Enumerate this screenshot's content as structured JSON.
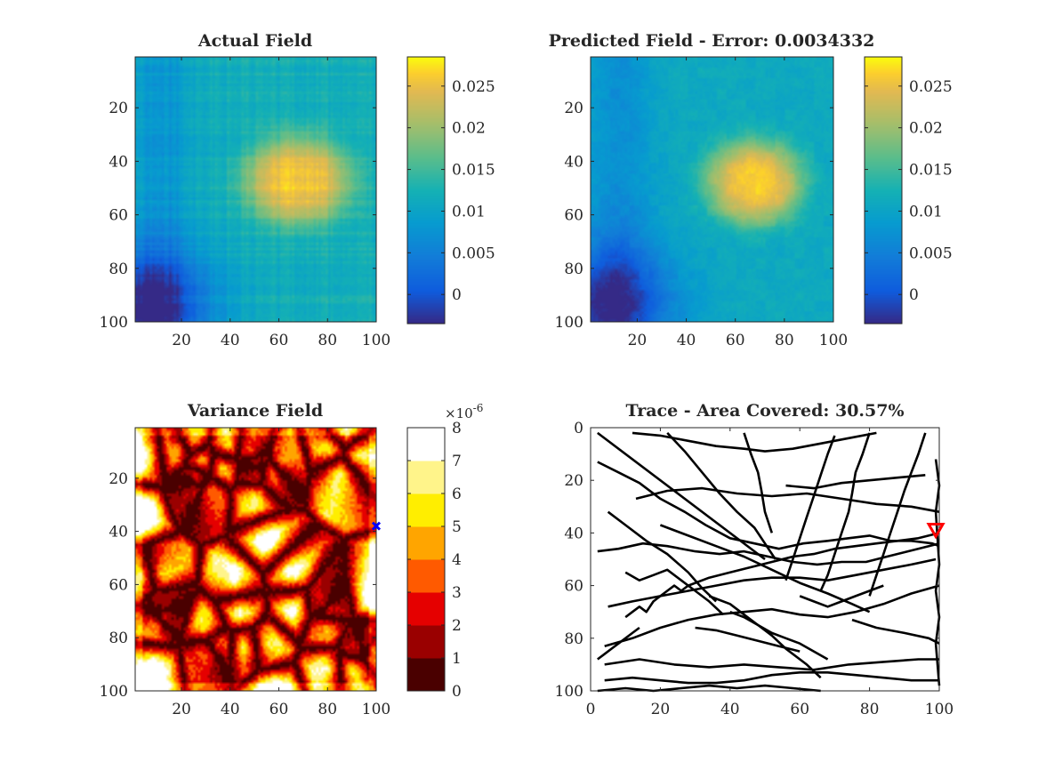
{
  "figure": {
    "panels": [
      {
        "title": "Actual Field"
      },
      {
        "title": "Predicted Field - Error: 0.0034332"
      },
      {
        "title": "Variance Field"
      },
      {
        "title": "Trace - Area Covered: 30.57%"
      }
    ]
  },
  "chart_data": [
    {
      "type": "heatmap",
      "title": "Actual Field",
      "xlabel": "",
      "ylabel": "",
      "xlim": [
        1,
        100
      ],
      "ylim": [
        1,
        100
      ],
      "y_reversed": true,
      "x_ticks": [
        "20",
        "40",
        "60",
        "80",
        "100"
      ],
      "y_ticks": [
        "20",
        "40",
        "60",
        "80",
        "100"
      ],
      "colormap": "parula",
      "colorbar": {
        "range": [
          -0.0035,
          0.0285
        ],
        "ticks": [
          "0",
          "0.005",
          "0.01",
          "0.015",
          "0.02",
          "0.025"
        ],
        "tick_values": [
          0,
          0.005,
          0.01,
          0.015,
          0.02,
          0.025
        ]
      },
      "field_model": {
        "hot_center": [
          68,
          47
        ],
        "hot_peak": 0.026,
        "hot_spread": [
          22,
          17
        ],
        "cold_corner": [
          5,
          95
        ],
        "cold_value": -0.002,
        "background": 0.012,
        "grid_texture": true
      }
    },
    {
      "type": "heatmap",
      "title": "Predicted Field - Error: 0.0034332",
      "xlabel": "",
      "ylabel": "",
      "xlim": [
        1,
        100
      ],
      "ylim": [
        1,
        100
      ],
      "y_reversed": true,
      "x_ticks": [
        "20",
        "40",
        "60",
        "80",
        "100"
      ],
      "y_ticks": [
        "20",
        "40",
        "60",
        "80",
        "100"
      ],
      "colormap": "parula",
      "colorbar": {
        "range": [
          -0.0035,
          0.0285
        ],
        "ticks": [
          "0",
          "0.005",
          "0.01",
          "0.015",
          "0.02",
          "0.025"
        ],
        "tick_values": [
          0,
          0.005,
          0.01,
          0.015,
          0.02,
          0.025
        ]
      },
      "field_model": {
        "hot_center": [
          68,
          48
        ],
        "hot_peak": 0.0265,
        "hot_spread": [
          20,
          16
        ],
        "cold_corner": [
          8,
          93
        ],
        "cold_value": -0.001,
        "background": 0.011,
        "grid_texture": false
      }
    },
    {
      "type": "heatmap",
      "title": "Variance Field",
      "xlabel": "",
      "ylabel": "",
      "xlim": [
        1,
        100
      ],
      "ylim": [
        1,
        100
      ],
      "y_reversed": true,
      "x_ticks": [
        "20",
        "40",
        "60",
        "80",
        "100"
      ],
      "y_ticks": [
        "20",
        "40",
        "60",
        "80",
        "100"
      ],
      "colormap": "hot (discrete, 8 levels)",
      "colorbar": {
        "range": [
          0,
          8
        ],
        "ticks": [
          "0",
          "1",
          "2",
          "3",
          "4",
          "5",
          "6",
          "7",
          "8"
        ],
        "multiplier": "×10",
        "multiplier_exponent": "-6",
        "level_colors": [
          "#4a0000",
          "#9a0000",
          "#e50000",
          "#ff5a00",
          "#ffa500",
          "#ffee00",
          "#fff48a",
          "#ffffff"
        ]
      },
      "marker": {
        "symbol": "x",
        "color": "#0000ff",
        "x": 100,
        "y": 38
      }
    },
    {
      "type": "line",
      "title": "Trace - Area Covered: 30.57%",
      "xlabel": "",
      "ylabel": "",
      "xlim": [
        0,
        100
      ],
      "ylim": [
        0,
        100
      ],
      "y_reversed": true,
      "x_ticks": [
        "0",
        "20",
        "40",
        "60",
        "80",
        "100"
      ],
      "y_ticks": [
        "0",
        "20",
        "40",
        "60",
        "80",
        "100"
      ],
      "line_color": "#000000",
      "marker": {
        "symbol": "triangle-down",
        "color": "#ff0000",
        "x": 99,
        "y": 39
      },
      "series": [
        {
          "x": [
            2,
            50
          ],
          "y": [
            2,
            50
          ]
        },
        {
          "x": [
            2,
            8,
            14,
            20,
            27,
            33,
            40,
            47,
            54,
            61,
            68,
            74,
            80,
            86,
            92,
            98,
            100
          ],
          "y": [
            13,
            17,
            21,
            27,
            32,
            37,
            42,
            44,
            46,
            44,
            43,
            42,
            41,
            43,
            43,
            44,
            45
          ]
        },
        {
          "x": [
            2,
            8,
            15,
            22,
            30,
            37,
            44,
            51,
            58,
            65,
            72,
            79,
            85,
            91,
            97,
            100
          ],
          "y": [
            47,
            46,
            44,
            45,
            47,
            48,
            47,
            49,
            51,
            52,
            51,
            51,
            49,
            47,
            45,
            44
          ]
        },
        {
          "x": [
            5,
            12,
            20,
            28,
            36,
            44,
            52,
            60,
            68,
            76,
            84,
            92,
            99
          ],
          "y": [
            68,
            66,
            64,
            62,
            60,
            58,
            57,
            57,
            58,
            56,
            54,
            52,
            50
          ]
        },
        {
          "x": [
            4,
            12,
            20,
            28,
            36,
            44,
            52,
            60,
            68,
            76,
            84,
            92,
            100
          ],
          "y": [
            83,
            80,
            76,
            73,
            71,
            70,
            69,
            71,
            72,
            70,
            67,
            63,
            60
          ]
        },
        {
          "x": [
            4,
            12,
            20,
            28,
            36,
            44,
            52,
            60,
            68,
            76,
            84,
            92,
            100
          ],
          "y": [
            96,
            95,
            96,
            97,
            97,
            96,
            94,
            93,
            93,
            94,
            95,
            96,
            96
          ]
        },
        {
          "x": [
            2,
            10,
            18,
            26,
            34,
            42,
            50,
            58,
            66
          ],
          "y": [
            100,
            99,
            100,
            99,
            98,
            99,
            98,
            99,
            100
          ]
        },
        {
          "x": [
            4,
            14,
            24,
            34,
            44,
            54,
            64,
            74,
            84,
            94,
            100
          ],
          "y": [
            90,
            88,
            90,
            91,
            90,
            91,
            92,
            90,
            89,
            88,
            88
          ]
        },
        {
          "x": [
            13,
            22,
            32,
            42,
            52,
            62,
            72,
            82,
            92,
            100
          ],
          "y": [
            27,
            24,
            23,
            25,
            26,
            25,
            27,
            29,
            30,
            32
          ]
        },
        {
          "x": [
            12,
            20,
            28,
            36,
            44,
            50,
            58,
            66,
            74,
            82
          ],
          "y": [
            2,
            3,
            5,
            7,
            8,
            9,
            8,
            6,
            4,
            2
          ]
        },
        {
          "x": [
            20,
            28,
            36,
            44,
            52,
            60,
            68,
            75,
            80
          ],
          "y": [
            37,
            41,
            45,
            49,
            54,
            59,
            63,
            67,
            70
          ]
        },
        {
          "x": [
            34,
            40,
            44,
            48,
            52,
            56,
            62,
            66
          ],
          "y": [
            64,
            67,
            71,
            75,
            79,
            84,
            90,
            95
          ]
        },
        {
          "x": [
            56,
            64,
            72,
            80,
            88,
            96
          ],
          "y": [
            22,
            23,
            21,
            20,
            19,
            18
          ]
        },
        {
          "x": [
            75,
            82,
            90,
            97,
            100
          ],
          "y": [
            73,
            76,
            78,
            80,
            82
          ]
        },
        {
          "x": [
            5,
            10,
            16,
            22,
            28,
            32,
            36
          ],
          "y": [
            32,
            37,
            43,
            48,
            55,
            61,
            66
          ]
        },
        {
          "x": [
            10,
            14,
            18,
            22,
            26,
            30,
            34,
            38
          ],
          "y": [
            55,
            58,
            56,
            54,
            58,
            62,
            66,
            71
          ]
        },
        {
          "x": [
            22,
            27,
            32,
            37,
            42,
            47,
            50,
            53
          ],
          "y": [
            2,
            9,
            17,
            25,
            32,
            38,
            44,
            50
          ]
        },
        {
          "x": [
            44,
            46,
            48,
            49,
            50,
            52
          ],
          "y": [
            2,
            10,
            17,
            24,
            32,
            40
          ]
        },
        {
          "x": [
            70,
            68,
            66,
            64,
            62,
            60,
            58,
            56
          ],
          "y": [
            3,
            10,
            18,
            26,
            34,
            42,
            50,
            58
          ]
        },
        {
          "x": [
            80,
            78,
            76,
            75,
            74,
            72,
            70,
            68,
            66
          ],
          "y": [
            2,
            10,
            17,
            25,
            32,
            40,
            48,
            56,
            62
          ]
        },
        {
          "x": [
            96,
            94,
            92,
            90,
            88,
            86,
            84,
            82,
            80
          ],
          "y": [
            2,
            10,
            17,
            24,
            32,
            40,
            48,
            56,
            64
          ]
        },
        {
          "x": [
            40,
            44,
            48,
            52,
            56,
            60,
            64,
            68
          ],
          "y": [
            70,
            72,
            75,
            78,
            80,
            82,
            85,
            88
          ]
        },
        {
          "x": [
            10,
            12,
            14,
            16,
            18,
            20,
            22,
            24,
            26,
            28
          ],
          "y": [
            72,
            70,
            68,
            70,
            66,
            64,
            62,
            60,
            62,
            60
          ]
        },
        {
          "x": [
            28,
            34,
            40,
            46,
            52,
            58,
            64,
            70,
            76,
            82,
            88,
            94,
            100
          ],
          "y": [
            60,
            57,
            55,
            53,
            51,
            49,
            48,
            46,
            45,
            44,
            43,
            42,
            40
          ]
        },
        {
          "x": [
            99,
            100,
            99,
            100,
            99,
            100,
            99,
            100
          ],
          "y": [
            12,
            22,
            32,
            52,
            62,
            72,
            82,
            98
          ]
        },
        {
          "x": [
            2,
            4,
            6,
            8,
            10,
            12,
            14
          ],
          "y": [
            88,
            86,
            84,
            82,
            80,
            78,
            76
          ]
        },
        {
          "x": [
            30,
            36,
            42,
            48,
            54,
            60
          ],
          "y": [
            76,
            77,
            79,
            81,
            83,
            85
          ]
        },
        {
          "x": [
            60,
            64,
            68,
            72,
            76,
            80,
            84
          ],
          "y": [
            64,
            66,
            68,
            66,
            64,
            62,
            60
          ]
        }
      ]
    }
  ]
}
